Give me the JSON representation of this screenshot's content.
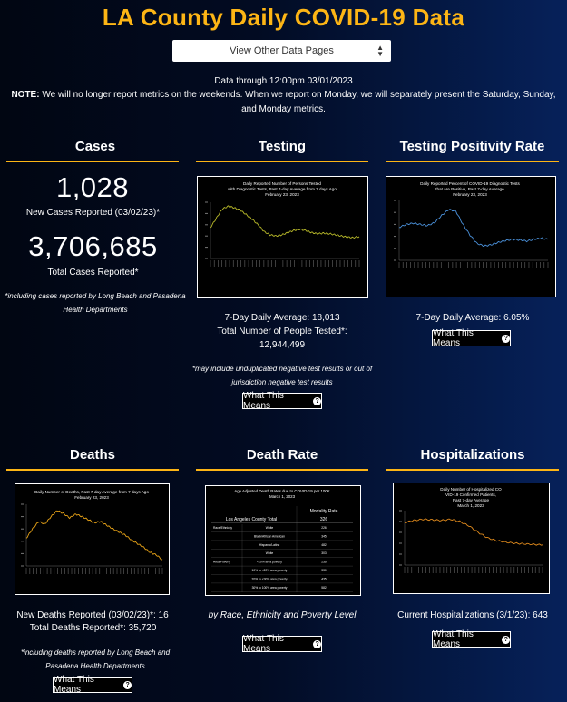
{
  "header": {
    "title": "LA County Daily COVID-19 Data",
    "dropdown_label": "View Other Data Pages",
    "data_through": "Data through 12:00pm 03/01/2023",
    "note_label": "NOTE:",
    "note_text": " We will no longer report metrics on the weekends. When we report on Monday, we will separately present the Saturday, Sunday, and Monday metrics."
  },
  "cases": {
    "title": "Cases",
    "new_value": "1,028",
    "new_label": "New Cases Reported (03/02/23)*",
    "total_value": "3,706,685",
    "total_label": "Total Cases Reported*",
    "footnote": "*including cases reported by Long Beach and Pasadena Health Departments"
  },
  "testing": {
    "title": "Testing",
    "avg": "7-Day Daily Average: 18,013",
    "total_label": "Total Number of People Tested*:",
    "total_value": "12,944,499",
    "footnote": "*may include unduplicated negative test results or out of jurisdiction negative test results",
    "button": "What This Means"
  },
  "positivity": {
    "title": "Testing Positivity Rate",
    "avg": "7-Day Daily Average: 6.05%",
    "button": "What This Means"
  },
  "deaths": {
    "title": "Deaths",
    "new_line": "New Deaths Reported (03/02/23)*: 16",
    "total_line": "Total Deaths Reported*: 35,720",
    "footnote": "*including deaths reported by Long Beach and Pasadena Health Departments",
    "button": "What This Means"
  },
  "death_rate": {
    "title": "Death Rate",
    "caption": "by Race, Ethnicity and Poverty Level",
    "button": "What This Means"
  },
  "hospitalizations": {
    "title": "Hospitalizations",
    "current": "Current Hospitalizations (3/1/23): 643",
    "button": "What This Means"
  },
  "colors": {
    "accent": "#fdb515",
    "testing_line": "#b7b829",
    "positivity_line": "#4a90d9",
    "deaths_line": "#e8a317",
    "hosp_line": "#e08a1c"
  },
  "chart_data": [
    {
      "type": "line",
      "title": "Daily Reported Number of Persons Tested with Diagnostic Tests, Past 7-day Average from 7 days Ago February 23, 2023",
      "series": [
        {
          "values": [
            0.55,
            0.72,
            0.88,
            0.93,
            0.9,
            0.86,
            0.78,
            0.7,
            0.6,
            0.48,
            0.42,
            0.4,
            0.42,
            0.46,
            0.5,
            0.52,
            0.5,
            0.46,
            0.44,
            0.45,
            0.44,
            0.42,
            0.4,
            0.38,
            0.37,
            0.39
          ]
        }
      ]
    },
    {
      "type": "line",
      "title": "Daily Reported Percent of COVID-19 Diagnostic Tests that are Positive, Past 7-day Average February 23, 2023",
      "series": [
        {
          "values": [
            0.55,
            0.6,
            0.62,
            0.6,
            0.58,
            0.63,
            0.75,
            0.85,
            0.82,
            0.6,
            0.42,
            0.28,
            0.24,
            0.26,
            0.3,
            0.33,
            0.35,
            0.34,
            0.32,
            0.35,
            0.37,
            0.35
          ]
        }
      ]
    },
    {
      "type": "line",
      "title": "Daily Number of Deaths, Past 7-day Average from 7 days Ago February 23, 2023",
      "series": [
        {
          "values": [
            0.45,
            0.6,
            0.72,
            0.68,
            0.8,
            0.9,
            0.85,
            0.78,
            0.84,
            0.8,
            0.75,
            0.7,
            0.72,
            0.66,
            0.6,
            0.55,
            0.5,
            0.42,
            0.36,
            0.3,
            0.22,
            0.18,
            0.1
          ]
        }
      ]
    },
    {
      "type": "table",
      "title": "Age Adjusted Death Rates due to COVID-19 per 100K March 1, 2023",
      "header": "Mortality Rate",
      "rows": [
        [
          "Los Angeles County Total",
          "326"
        ],
        [
          "Race/Ethnicity",
          "White",
          "226"
        ],
        [
          "",
          "Black/African American",
          "345"
        ],
        [
          "",
          "Hispanic/Latino",
          "482"
        ],
        [
          "",
          "White",
          "303"
        ],
        [
          "Area Poverty",
          "<10% area poverty",
          "236"
        ],
        [
          "",
          "10% to <20% area poverty",
          "330"
        ],
        [
          "",
          "20% to <30% area poverty",
          "435"
        ],
        [
          "",
          "30% to 100% area poverty",
          "582"
        ]
      ]
    },
    {
      "type": "line",
      "title": "Daily Number of Hospitalized COVID-19 Confirmed Patients, Past 7-day Average March 1, 2023",
      "series": [
        {
          "values": [
            0.78,
            0.82,
            0.84,
            0.83,
            0.82,
            0.84,
            0.8,
            0.72,
            0.6,
            0.5,
            0.45,
            0.42,
            0.4,
            0.39,
            0.38,
            0.37
          ]
        }
      ]
    }
  ]
}
